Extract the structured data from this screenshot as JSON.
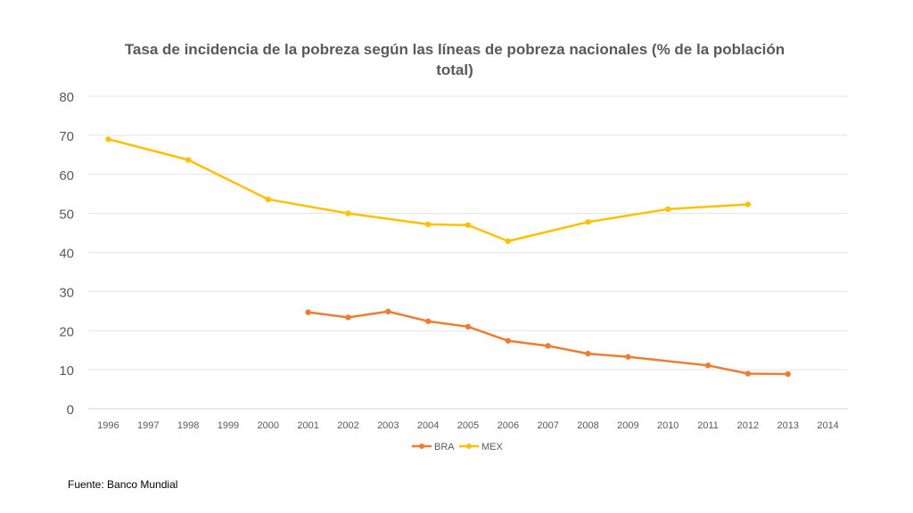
{
  "chart_data": {
    "type": "line",
    "title": "Tasa de incidencia de la pobreza según las líneas de pobreza nacionales (% de la población total)",
    "xlabel": "",
    "ylabel": "",
    "categories": [
      "1996",
      "1997",
      "1998",
      "1999",
      "2000",
      "2001",
      "2002",
      "2003",
      "2004",
      "2005",
      "2006",
      "2007",
      "2008",
      "2009",
      "2010",
      "2011",
      "2012",
      "2013",
      "2014"
    ],
    "ylim": [
      0,
      80
    ],
    "yticks": [
      0,
      10,
      20,
      30,
      40,
      50,
      60,
      70,
      80
    ],
    "grid": true,
    "legend_position": "bottom",
    "series": [
      {
        "name": "BRA",
        "color": "#ED7D31",
        "values": [
          null,
          null,
          null,
          null,
          null,
          24.7,
          23.4,
          24.9,
          22.4,
          21.0,
          17.4,
          16.1,
          14.1,
          13.3,
          null,
          11.1,
          9.0,
          8.9,
          null
        ]
      },
      {
        "name": "MEX",
        "color": "#FFC000",
        "values": [
          69.0,
          null,
          63.7,
          null,
          53.6,
          null,
          50.0,
          null,
          47.2,
          47.0,
          42.9,
          null,
          47.8,
          null,
          51.1,
          null,
          52.3,
          null,
          null
        ]
      }
    ]
  },
  "footer": {
    "source": "Fuente: Banco Mundial"
  }
}
